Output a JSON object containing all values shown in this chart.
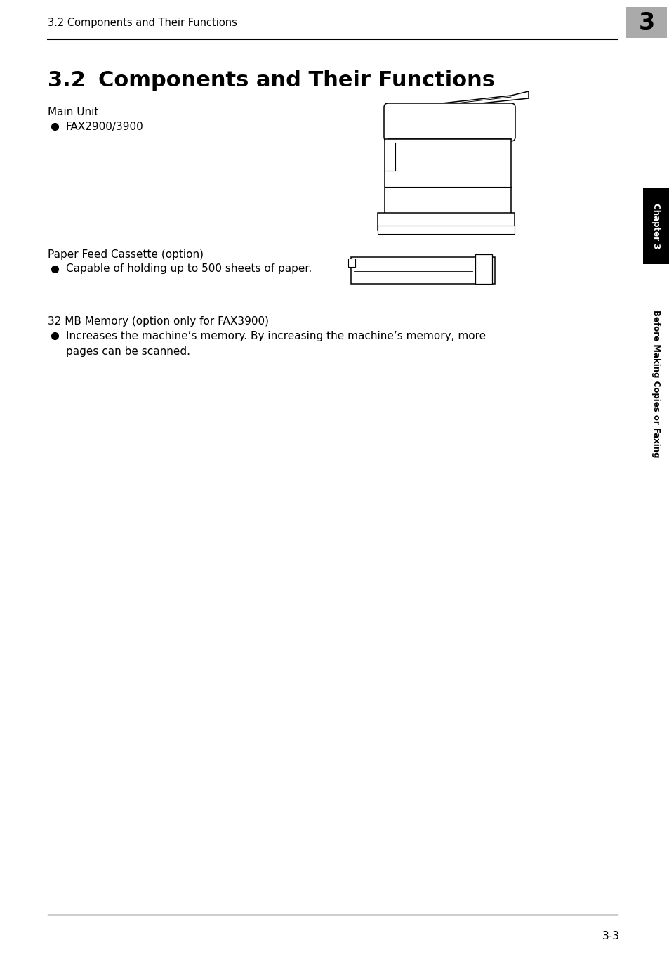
{
  "page_bg": "#ffffff",
  "header_text": "3.2 Components and Their Functions",
  "header_chapter_num": "3",
  "header_chapter_bg": "#aaaaaa",
  "title_num": "3.2",
  "title_text": "Components and Their Functions",
  "section1_label": "Main Unit",
  "section1_bullet": "FAX2900/3900",
  "section2_label": "Paper Feed Cassette (option)",
  "section2_bullet": "Capable of holding up to 500 sheets of paper.",
  "section3_label": "32 MB Memory (option only for FAX3900)",
  "section3_bullet1": "Increases the machine’s memory. By increasing the machine’s memory, more",
  "section3_bullet2": "pages can be scanned.",
  "sidebar_chapter": "Chapter 3",
  "sidebar_label": "Before Making Copies or Faxing",
  "sidebar_bg": "#000000",
  "sidebar_text_color": "#ffffff",
  "sidebar_label_color": "#000000",
  "footer_page": "3-3",
  "line_color": "#000000",
  "fig_width": 9.54,
  "fig_height": 13.58,
  "dpi": 100
}
